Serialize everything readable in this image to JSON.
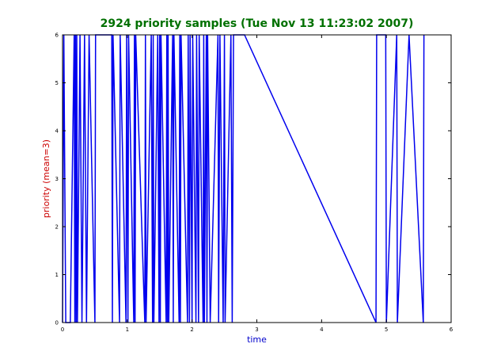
{
  "chart_data": {
    "type": "line",
    "title": "2924 priority samples (Tue Nov 13 11:23:02 2007)",
    "xlabel": "time",
    "ylabel": "priority (mean=3)",
    "xlim": [
      0,
      6
    ],
    "ylim": [
      0,
      6
    ],
    "x_ticks": [
      "0",
      "1",
      "2",
      "3",
      "4",
      "5",
      "6"
    ],
    "y_ticks": [
      "0",
      "1",
      "2",
      "3",
      "4",
      "5",
      "6"
    ],
    "grid": false,
    "colors": {
      "title": "#007000",
      "xlabel": "#0000cc",
      "ylabel": "#cc0000",
      "line": "#0000ee"
    },
    "series": [
      {
        "x": [
          0.0,
          0.02,
          0.05,
          0.12,
          0.18,
          0.19,
          0.2,
          0.21,
          0.22,
          0.23,
          0.27,
          0.3,
          0.34,
          0.37,
          0.41,
          0.5,
          0.51,
          0.76,
          0.77,
          0.78,
          0.88,
          0.89,
          0.98,
          0.99,
          1.01,
          1.02,
          1.1,
          1.11,
          1.12,
          1.13,
          1.27,
          1.28,
          1.29,
          1.37,
          1.39,
          1.4,
          1.41,
          1.47,
          1.49,
          1.5,
          1.51,
          1.52,
          1.6,
          1.61,
          1.62,
          1.63,
          1.64,
          1.7,
          1.71,
          1.72,
          1.8,
          1.81,
          1.82,
          1.83,
          1.93,
          1.94,
          1.96,
          1.97,
          2.0,
          2.01,
          2.06,
          2.07,
          2.1,
          2.11,
          2.17,
          2.18,
          2.19,
          2.22,
          2.23,
          2.24,
          2.28,
          2.4,
          2.41,
          2.43,
          2.48,
          2.5,
          2.51,
          2.6,
          2.62,
          2.64,
          2.81,
          4.84,
          4.85,
          4.99,
          5.0,
          5.16,
          5.17,
          5.35,
          5.57,
          5.58
        ],
        "y": [
          0,
          6,
          0,
          0,
          6,
          0,
          6,
          0,
          6,
          0,
          6,
          0,
          6,
          0,
          6,
          0,
          6,
          6,
          0,
          6,
          0,
          6,
          0,
          6,
          0,
          6,
          0,
          6,
          0,
          6,
          0,
          6,
          0,
          6,
          0,
          6,
          0,
          6,
          0,
          6,
          0,
          6,
          0,
          6,
          0,
          6,
          0,
          6,
          0,
          6,
          0,
          6,
          0,
          6,
          0,
          6,
          0,
          6,
          0,
          6,
          0,
          6,
          0,
          6,
          0,
          6,
          0,
          6,
          0,
          6,
          0,
          6,
          0,
          6,
          0,
          6,
          0,
          6,
          0,
          6,
          6,
          0,
          6,
          6,
          0,
          6,
          0,
          6,
          0,
          6
        ]
      }
    ]
  }
}
